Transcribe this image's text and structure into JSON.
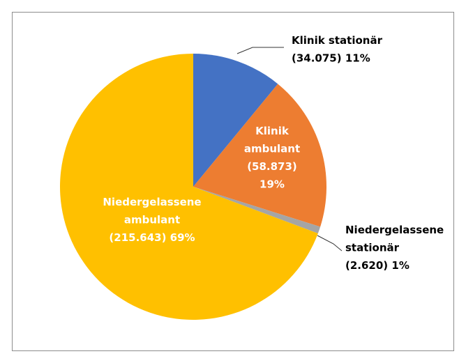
{
  "chart_data": {
    "type": "pie",
    "categories": [
      "Klinik stationär",
      "Klinik ambulant",
      "Niedergelassene stationär",
      "Niedergelassene ambulant"
    ],
    "values": [
      34075,
      58873,
      2620,
      215643
    ],
    "value_labels": [
      "(34.075) 11%",
      "(58.873) 19%",
      "(2.620) 1%",
      "(215.643) 69%"
    ],
    "colors": [
      "#4472c4",
      "#ed7d31",
      "#a5a5a5",
      "#ffc000"
    ]
  }
}
